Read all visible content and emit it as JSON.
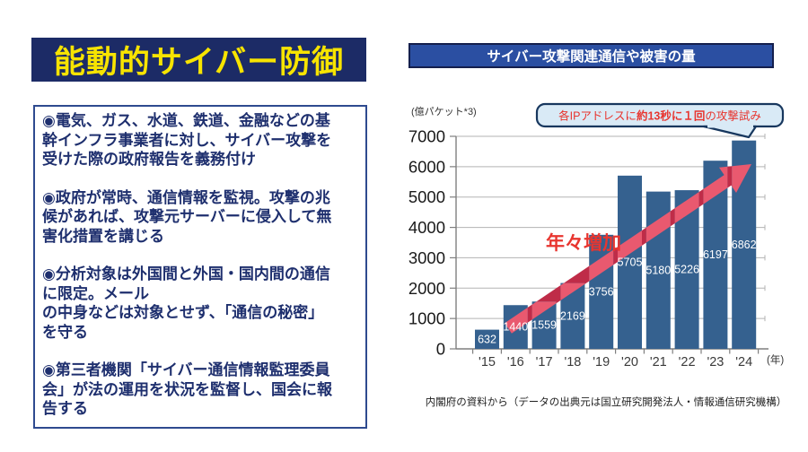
{
  "left_panel": {
    "title": "能動的サイバー防御",
    "bullets": [
      "◉電気、ガス、水道、鉄道、金融などの基\n幹インフラ事業者に対し、サイバー攻撃を\n受けた際の政府報告を義務付け",
      "◉政府が常時、通信情報を監視。攻撃の兆\n候があれば、攻撃元サーバーに侵入して無\n害化措置を講じる",
      "◉分析対象は外国間と外国・国内間の通信\nに限定。メール\nの中身などは対象とせず、「通信の秘密」\nを守る",
      "◉第三者機関「サイバー通信情報監理委員\n会」が法の運用を状況を監督し、国会に報\n告する"
    ]
  },
  "right_panel": {
    "header": "サイバー攻撃関連通信や被害の量",
    "callout": {
      "prefix": "各IPアドレスに",
      "bold": "約13秒に１回",
      "suffix": "の攻撃試み"
    },
    "source": "内閣府の資料から（データの出典元は国立研究開発法人・情報通信研究機構）"
  },
  "chart_data": {
    "type": "bar",
    "title": "サイバー攻撃関連通信や被害の量",
    "unit_label": "(億パケット*3)",
    "categories": [
      "'15",
      "'16",
      "'17",
      "'18",
      "'19",
      "'20",
      "'21",
      "'22",
      "'23",
      "'24"
    ],
    "values": [
      632,
      1440,
      1559,
      2169,
      3756,
      5705,
      5180,
      5226,
      6197,
      6862
    ],
    "x_axis_suffix": "(年)",
    "annotation": "年々増加",
    "xlabel": "年",
    "ylabel": "億パケット",
    "ylim": [
      0,
      7000
    ],
    "ytick_step": 1000,
    "grid": true,
    "bar_color": "#35618f",
    "value_label_color": "#ffffff",
    "arrow_color": "#bf2c48",
    "arrow_overlay_color": "#e9596f"
  },
  "colors": {
    "title_bg": "#1c2b66",
    "title_text": "#f7e400",
    "box_border": "#2e4a8f",
    "body_text": "#1e2f6e",
    "header_bg": "#2b4fa2",
    "header_border": "#141f4d",
    "callout_bg": "#d9eaf6",
    "callout_border": "#17375e",
    "accent_red": "#e8352f",
    "axis_gray": "#7f7f7f",
    "grid_gray": "#b3b3b3"
  }
}
